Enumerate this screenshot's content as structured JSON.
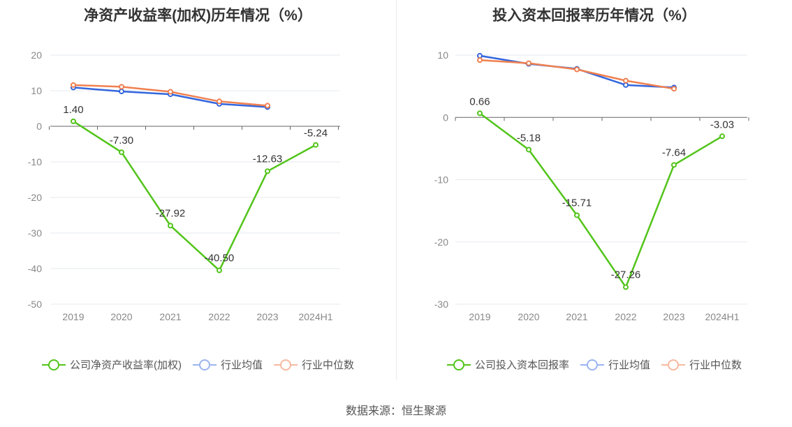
{
  "source": "数据来源：恒生聚源",
  "colors": {
    "company": "#52c41a",
    "avg": "#3366dd",
    "median": "#f08050",
    "grid": "#e5e8ef",
    "axis": "#666666"
  },
  "chart_data": [
    {
      "type": "line",
      "title": "净资产收益率(加权)历年情况（%）",
      "categories": [
        "2019",
        "2020",
        "2021",
        "2022",
        "2023",
        "2024H1"
      ],
      "ylim": [
        -50,
        20
      ],
      "yticks": [
        "20",
        "10",
        "0",
        "-10",
        "-20",
        "-30",
        "-40",
        "-50"
      ],
      "grid": true,
      "legend_position": "bottom",
      "series": [
        {
          "name": "公司净资产收益率(加权)",
          "values": [
            1.4,
            -7.3,
            -27.92,
            -40.5,
            -12.63,
            -5.24
          ],
          "labels": [
            "1.40",
            "-7.30",
            "-27.92",
            "-40.50",
            "-12.63",
            "-5.24"
          ]
        },
        {
          "name": "行业均值",
          "values": [
            10.9,
            9.8,
            9.0,
            6.3,
            5.4,
            null
          ]
        },
        {
          "name": "行业中位数",
          "values": [
            11.6,
            11.1,
            9.7,
            7.0,
            5.8,
            null
          ]
        }
      ]
    },
    {
      "type": "line",
      "title": "投入资本回报率历年情况（%）",
      "categories": [
        "2019",
        "2020",
        "2021",
        "2022",
        "2023",
        "2024H1"
      ],
      "ylim": [
        -30,
        10
      ],
      "yticks": [
        "10",
        "0",
        "-10",
        "-20",
        "-30"
      ],
      "grid": true,
      "legend_position": "bottom",
      "series": [
        {
          "name": "公司投入资本回报率",
          "values": [
            0.66,
            -5.18,
            -15.71,
            -27.26,
            -7.64,
            -3.03
          ],
          "labels": [
            "0.66",
            "-5.18",
            "-15.71",
            "-27.26",
            "-7.64",
            "-3.03"
          ]
        },
        {
          "name": "行业均值",
          "values": [
            9.9,
            8.6,
            7.8,
            5.2,
            4.8,
            null
          ]
        },
        {
          "name": "行业中位数",
          "values": [
            9.2,
            8.7,
            7.7,
            5.9,
            4.6,
            null
          ]
        }
      ]
    }
  ]
}
